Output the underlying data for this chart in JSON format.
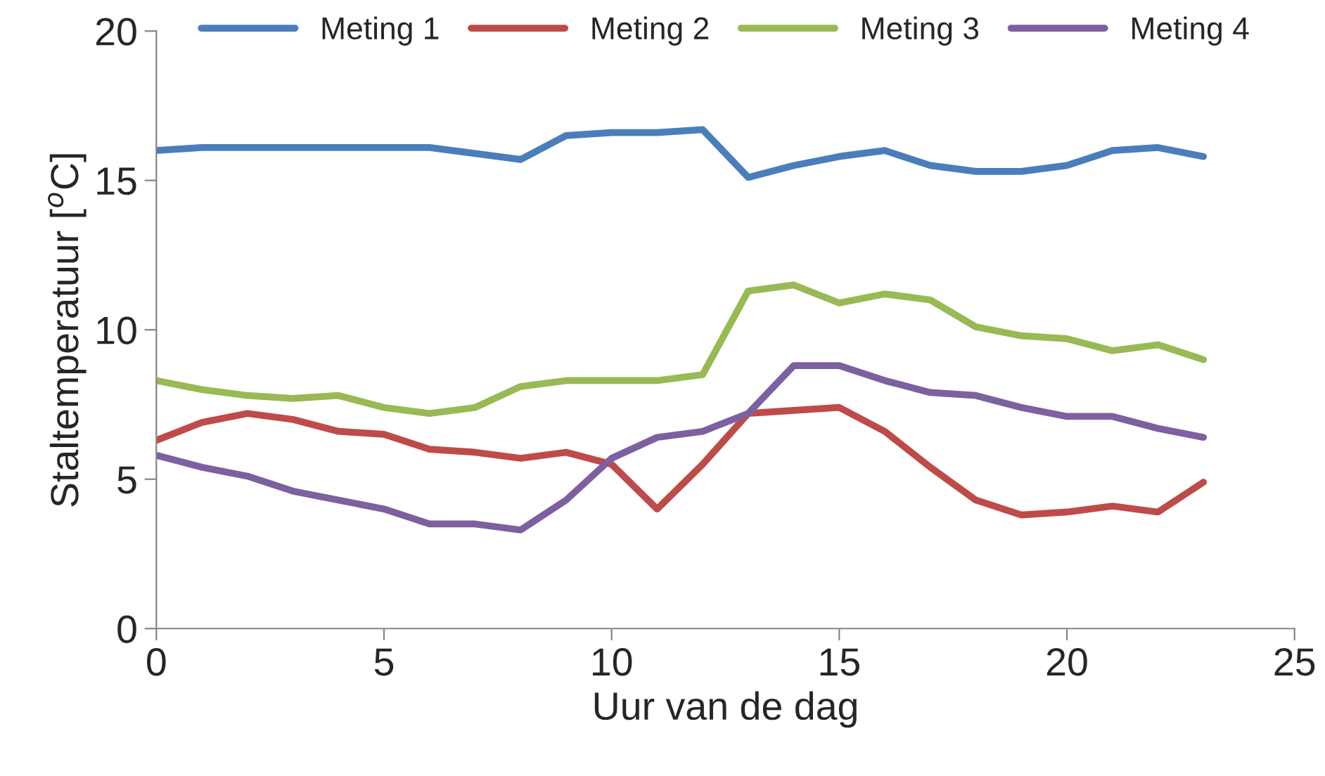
{
  "chart_data": {
    "type": "line",
    "xlabel": "Uur van de dag",
    "ylabel": "Staltemperatuur [$^{o}$C]",
    "x": [
      0,
      1,
      2,
      3,
      4,
      5,
      6,
      7,
      8,
      9,
      10,
      11,
      12,
      13,
      14,
      15,
      16,
      17,
      18,
      19,
      20,
      21,
      22,
      23
    ],
    "series": [
      {
        "name": "Meting 1",
        "color": "#4a7ebb",
        "values": [
          16.0,
          16.1,
          16.1,
          16.1,
          16.1,
          16.1,
          16.1,
          15.9,
          15.7,
          16.5,
          16.6,
          16.6,
          16.7,
          15.1,
          15.5,
          15.8,
          16.0,
          15.5,
          15.3,
          15.3,
          15.5,
          16.0,
          16.1,
          15.8
        ]
      },
      {
        "name": "Meting 2",
        "color": "#be4b48",
        "values": [
          6.3,
          6.9,
          7.2,
          7.0,
          6.6,
          6.5,
          6.0,
          5.9,
          5.7,
          5.9,
          5.5,
          4.0,
          5.5,
          7.2,
          7.3,
          7.4,
          6.6,
          5.4,
          4.3,
          3.8,
          3.9,
          4.1,
          3.9,
          4.9
        ]
      },
      {
        "name": "Meting 3",
        "color": "#98b954",
        "values": [
          8.3,
          8.0,
          7.8,
          7.7,
          7.8,
          7.4,
          7.2,
          7.4,
          8.1,
          8.3,
          8.3,
          8.3,
          8.5,
          11.3,
          11.5,
          10.9,
          11.2,
          11.0,
          10.1,
          9.8,
          9.7,
          9.3,
          9.5,
          9.0
        ]
      },
      {
        "name": "Meting 4",
        "color": "#7d60a0",
        "values": [
          5.8,
          5.4,
          5.1,
          4.6,
          4.3,
          4.0,
          3.5,
          3.5,
          3.3,
          4.3,
          5.7,
          6.4,
          6.6,
          7.2,
          8.8,
          8.8,
          8.3,
          7.9,
          7.8,
          7.4,
          7.1,
          7.1,
          6.7,
          6.4
        ]
      }
    ],
    "xlim": [
      0,
      25
    ],
    "xticks": [
      0,
      5,
      10,
      15,
      20,
      25
    ],
    "ylim": [
      0,
      20
    ],
    "yticks": [
      0,
      5,
      10,
      15,
      20
    ],
    "legend": "top",
    "marker": "none",
    "line_style": "solid"
  }
}
